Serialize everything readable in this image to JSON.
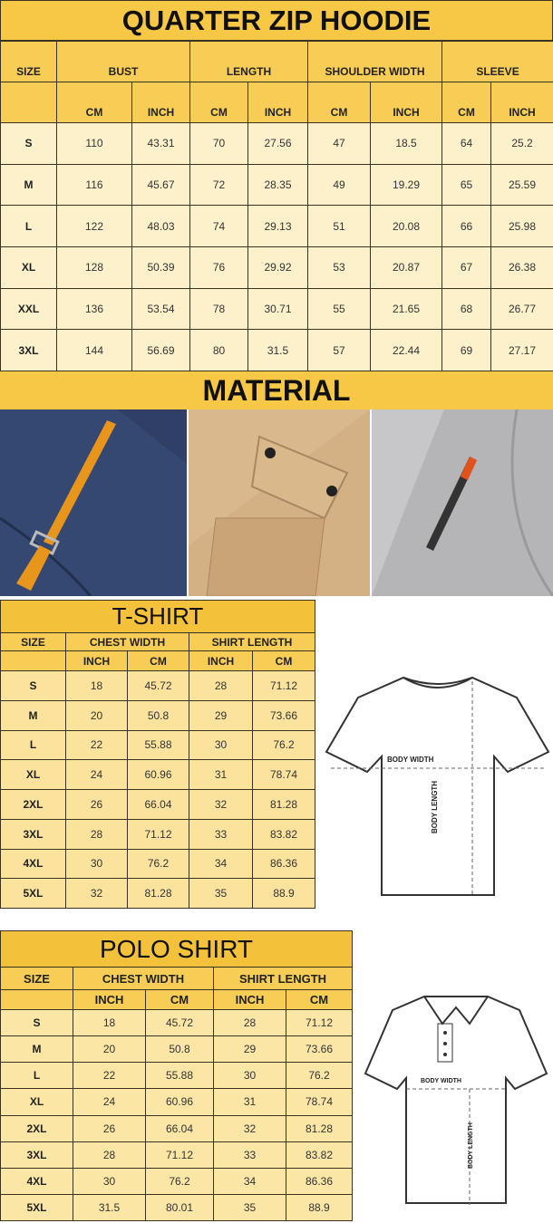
{
  "hoodie": {
    "title": "QUARTER ZIP HOODIE",
    "groups": [
      "SIZE",
      "BUST",
      "LENGTH",
      "SHOULDER WIDTH",
      "SLEEVE"
    ],
    "units": [
      "CM",
      "INCH",
      "CM",
      "INCH",
      "CM",
      "INCH",
      "CM",
      "INCH"
    ],
    "rows": [
      [
        "S",
        "110",
        "43.31",
        "70",
        "27.56",
        "47",
        "18.5",
        "64",
        "25.2"
      ],
      [
        "M",
        "116",
        "45.67",
        "72",
        "28.35",
        "49",
        "19.29",
        "65",
        "25.59"
      ],
      [
        "L",
        "122",
        "48.03",
        "74",
        "29.13",
        "51",
        "20.08",
        "66",
        "25.98"
      ],
      [
        "XL",
        "128",
        "50.39",
        "76",
        "29.92",
        "53",
        "20.87",
        "67",
        "26.38"
      ],
      [
        "XXL",
        "136",
        "53.54",
        "78",
        "30.71",
        "55",
        "21.65",
        "68",
        "26.77"
      ],
      [
        "3XL",
        "144",
        "56.69",
        "80",
        "31.5",
        "57",
        "22.44",
        "69",
        "27.17"
      ]
    ]
  },
  "material": {
    "title": "MATERIAL",
    "photos": [
      "navy-fabric-orange-strap",
      "tan-fabric-flap-pocket",
      "grey-fabric-zipper-pocket"
    ]
  },
  "tshirt": {
    "title": "T-SHIRT",
    "groups": [
      "SIZE",
      "CHEST WIDTH",
      "SHIRT LENGTH"
    ],
    "units": [
      "INCH",
      "CM",
      "INCH",
      "CM"
    ],
    "rows": [
      [
        "S",
        "18",
        "45.72",
        "28",
        "71.12"
      ],
      [
        "M",
        "20",
        "50.8",
        "29",
        "73.66"
      ],
      [
        "L",
        "22",
        "55.88",
        "30",
        "76.2"
      ],
      [
        "XL",
        "24",
        "60.96",
        "31",
        "78.74"
      ],
      [
        "2XL",
        "26",
        "66.04",
        "32",
        "81.28"
      ],
      [
        "3XL",
        "28",
        "71.12",
        "33",
        "83.82"
      ],
      [
        "4XL",
        "30",
        "76.2",
        "34",
        "86.36"
      ],
      [
        "5XL",
        "32",
        "81.28",
        "35",
        "88.9"
      ]
    ],
    "diagram": {
      "width_label": "BODY WIDTH",
      "length_label": "BODY LENGTH"
    }
  },
  "polo": {
    "title": "POLO SHIRT",
    "groups": [
      "SIZE",
      "CHEST WIDTH",
      "SHIRT LENGTH"
    ],
    "units": [
      "INCH",
      "CM",
      "INCH",
      "CM"
    ],
    "rows": [
      [
        "S",
        "18",
        "45.72",
        "28",
        "71.12"
      ],
      [
        "M",
        "20",
        "50.8",
        "29",
        "73.66"
      ],
      [
        "L",
        "22",
        "55.88",
        "30",
        "76.2"
      ],
      [
        "XL",
        "24",
        "60.96",
        "31",
        "78.74"
      ],
      [
        "2XL",
        "26",
        "66.04",
        "32",
        "81.28"
      ],
      [
        "3XL",
        "28",
        "71.12",
        "33",
        "83.82"
      ],
      [
        "4XL",
        "30",
        "76.2",
        "34",
        "86.36"
      ],
      [
        "5XL",
        "31.5",
        "80.01",
        "35",
        "88.9"
      ]
    ],
    "diagram": {
      "width_label": "BODY WIDTH",
      "length_label": "BODY LENGTH"
    }
  },
  "colors": {
    "title_band": "#f6c845",
    "header": "#f7cd55",
    "cell": "#fdf1cc"
  }
}
